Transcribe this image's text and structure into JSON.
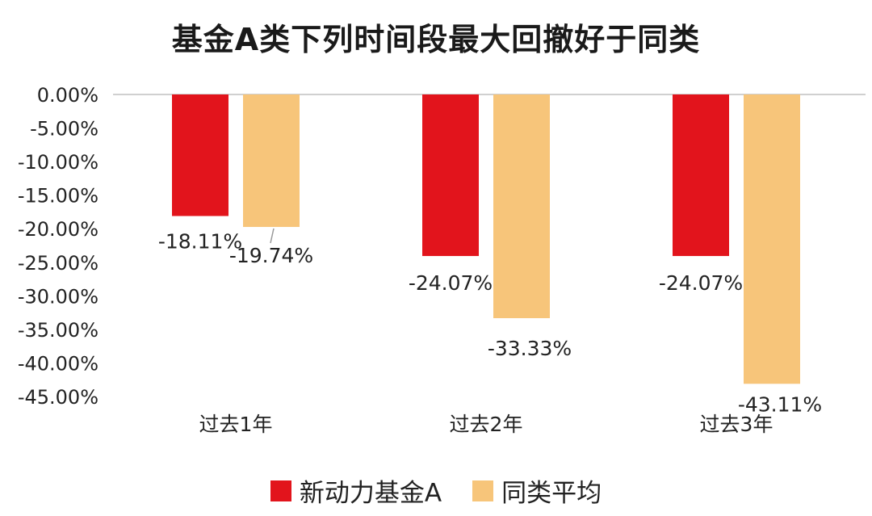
{
  "chart_data": {
    "type": "bar",
    "title": "基金A类下列时间段最大回撤好于同类",
    "categories": [
      "过去1年",
      "过去2年",
      "过去3年"
    ],
    "series": [
      {
        "name": "新动力基金A",
        "color": "#E2141C",
        "values": [
          -18.11,
          -24.07,
          -24.07
        ],
        "labels": [
          "-18.11%",
          "-24.07%",
          "-24.07%"
        ]
      },
      {
        "name": "同类平均",
        "color": "#F7C57A",
        "values": [
          -19.74,
          -33.33,
          -43.11
        ],
        "labels": [
          "-19.74%",
          "-33.33%",
          "-43.11%"
        ]
      }
    ],
    "ylim": [
      -45,
      0
    ],
    "yticks": [
      0,
      -5,
      -10,
      -15,
      -20,
      -25,
      -30,
      -35,
      -40,
      -45
    ],
    "ytick_labels": [
      "0.00%",
      "-5.00%",
      "-10.00%",
      "-15.00%",
      "-20.00%",
      "-25.00%",
      "-30.00%",
      "-35.00%",
      "-40.00%",
      "-45.00%"
    ],
    "grid": false,
    "legend_position": "bottom"
  }
}
